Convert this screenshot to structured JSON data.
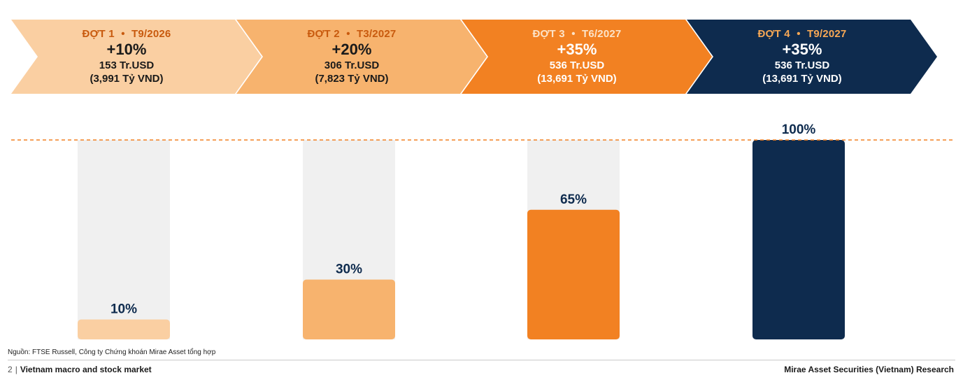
{
  "stages": [
    {
      "label": "ĐỢT 1",
      "bullet": "•",
      "date": "T9/2026",
      "increment": "+10%",
      "usd": "153 Tr.USD",
      "vnd": "(3,991 Tỷ VND)",
      "fill": "#FACFA2",
      "head_color": "#C85A0E",
      "text_color": "#1a1a1a"
    },
    {
      "label": "ĐỢT 2",
      "bullet": "•",
      "date": "T3/2027",
      "increment": "+20%",
      "usd": "306 Tr.USD",
      "vnd": "(7,823 Tỷ VND)",
      "fill": "#F7B36E",
      "head_color": "#C85A0E",
      "text_color": "#1a1a1a"
    },
    {
      "label": "ĐỢT 3",
      "bullet": "•",
      "date": "T6/2027",
      "increment": "+35%",
      "usd": "536 Tr.USD",
      "vnd": "(13,691 Tỷ VND)",
      "fill": "#F28122",
      "head_color": "#FCE3C8",
      "text_color": "#ffffff"
    },
    {
      "label": "ĐỢT 4",
      "bullet": "•",
      "date": "T9/2027",
      "increment": "+35%",
      "usd": "536 Tr.USD",
      "vnd": "(13,691 Tỷ VND)",
      "fill": "#0E2B4E",
      "head_color": "#F7A855",
      "text_color": "#ffffff"
    }
  ],
  "chart_data": {
    "type": "bar",
    "categories": [
      "ĐỢT 1",
      "ĐỢT 2",
      "ĐỢT 3",
      "ĐỢT 4"
    ],
    "values": [
      10,
      30,
      65,
      100
    ],
    "value_labels": [
      "10%",
      "30%",
      "65%",
      "100%"
    ],
    "ylim": [
      0,
      100
    ],
    "colors": [
      "#FACFA2",
      "#F7B36E",
      "#F28122",
      "#0E2B4E"
    ],
    "track_color": "#F0F0F0",
    "label_color": "#0E2B4E",
    "reference_line": {
      "value": 100,
      "style": "dashed",
      "color": "#F28122"
    },
    "grid": false,
    "legend": "none"
  },
  "source": "Nguồn: FTSE Russell, Công ty Chứng khoán Mirae Asset tổng hợp",
  "footer": {
    "page": "2",
    "separator": "|",
    "title": "Vietnam macro and stock market",
    "right": "Mirae Asset Securities (Vietnam) Research"
  }
}
